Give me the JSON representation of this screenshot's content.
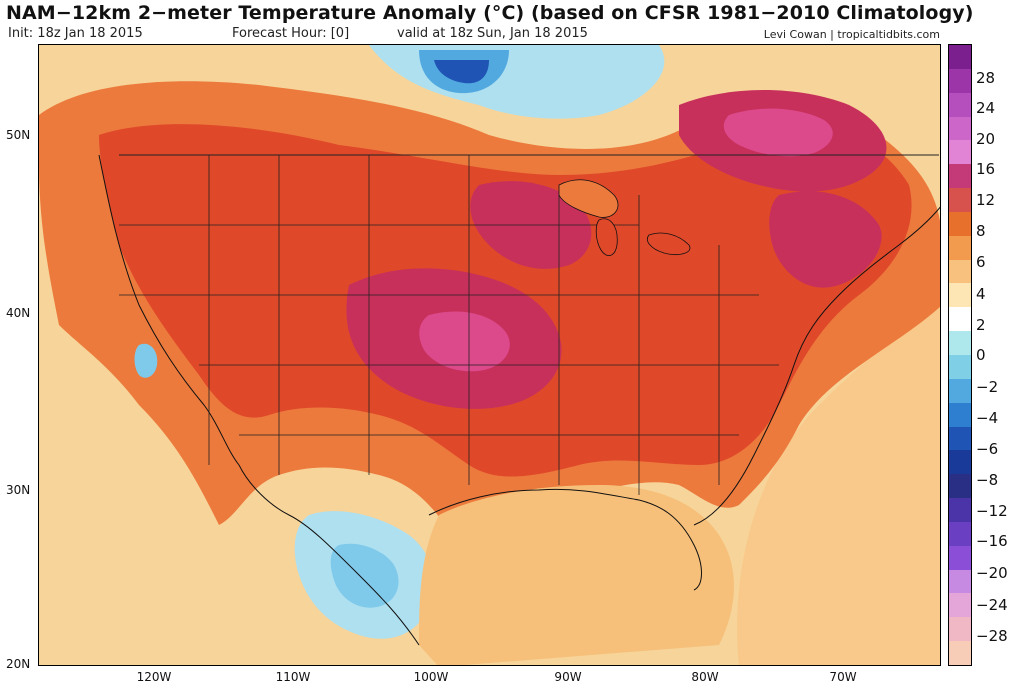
{
  "header": {
    "title": "NAM−12km 2−meter Temperature Anomaly (°C) (based on CFSR 1981−2010 Climatology)",
    "init": "Init: 18z Jan 18 2015",
    "forecast_hour": "Forecast Hour: [0]",
    "valid": "valid at 18z Sun, Jan 18 2015",
    "credit": "Levi Cowan | tropicaltidbits.com"
  },
  "axes": {
    "lat_labels": [
      "50N",
      "40N",
      "30N",
      "20N"
    ],
    "lon_labels": [
      "120W",
      "110W",
      "100W",
      "90W",
      "80W",
      "70W"
    ]
  },
  "colorbar": {
    "labels": [
      "28",
      "24",
      "20",
      "16",
      "12",
      "8",
      "6",
      "4",
      "2",
      "0",
      "−2",
      "−4",
      "−6",
      "−8",
      "−12",
      "−16",
      "−20",
      "−24",
      "−28"
    ],
    "colors": [
      "#7b1f8f",
      "#9b35a8",
      "#b54fbd",
      "#cc67c9",
      "#e184d6",
      "#c43a78",
      "#d7524d",
      "#e8702d",
      "#f29a4e",
      "#f8c27e",
      "#fde6b3",
      "#ffffff",
      "#aee8ec",
      "#7fd0e6",
      "#52a9e0",
      "#2f7fd0",
      "#1f54b4",
      "#1a3a9a",
      "#2a2f86",
      "#4a34a8",
      "#6a3fc2",
      "#8a4fd6",
      "#c68ae3",
      "#e4a6d9",
      "#f0b8c4",
      "#f8cdb8"
    ]
  },
  "legend_colors": {
    "ocean_warm": "#f7d49a",
    "hot_core": "#c8305c",
    "warm": "#e2452a",
    "mild": "#ee7a3a",
    "cold": "#7fc9ea"
  }
}
